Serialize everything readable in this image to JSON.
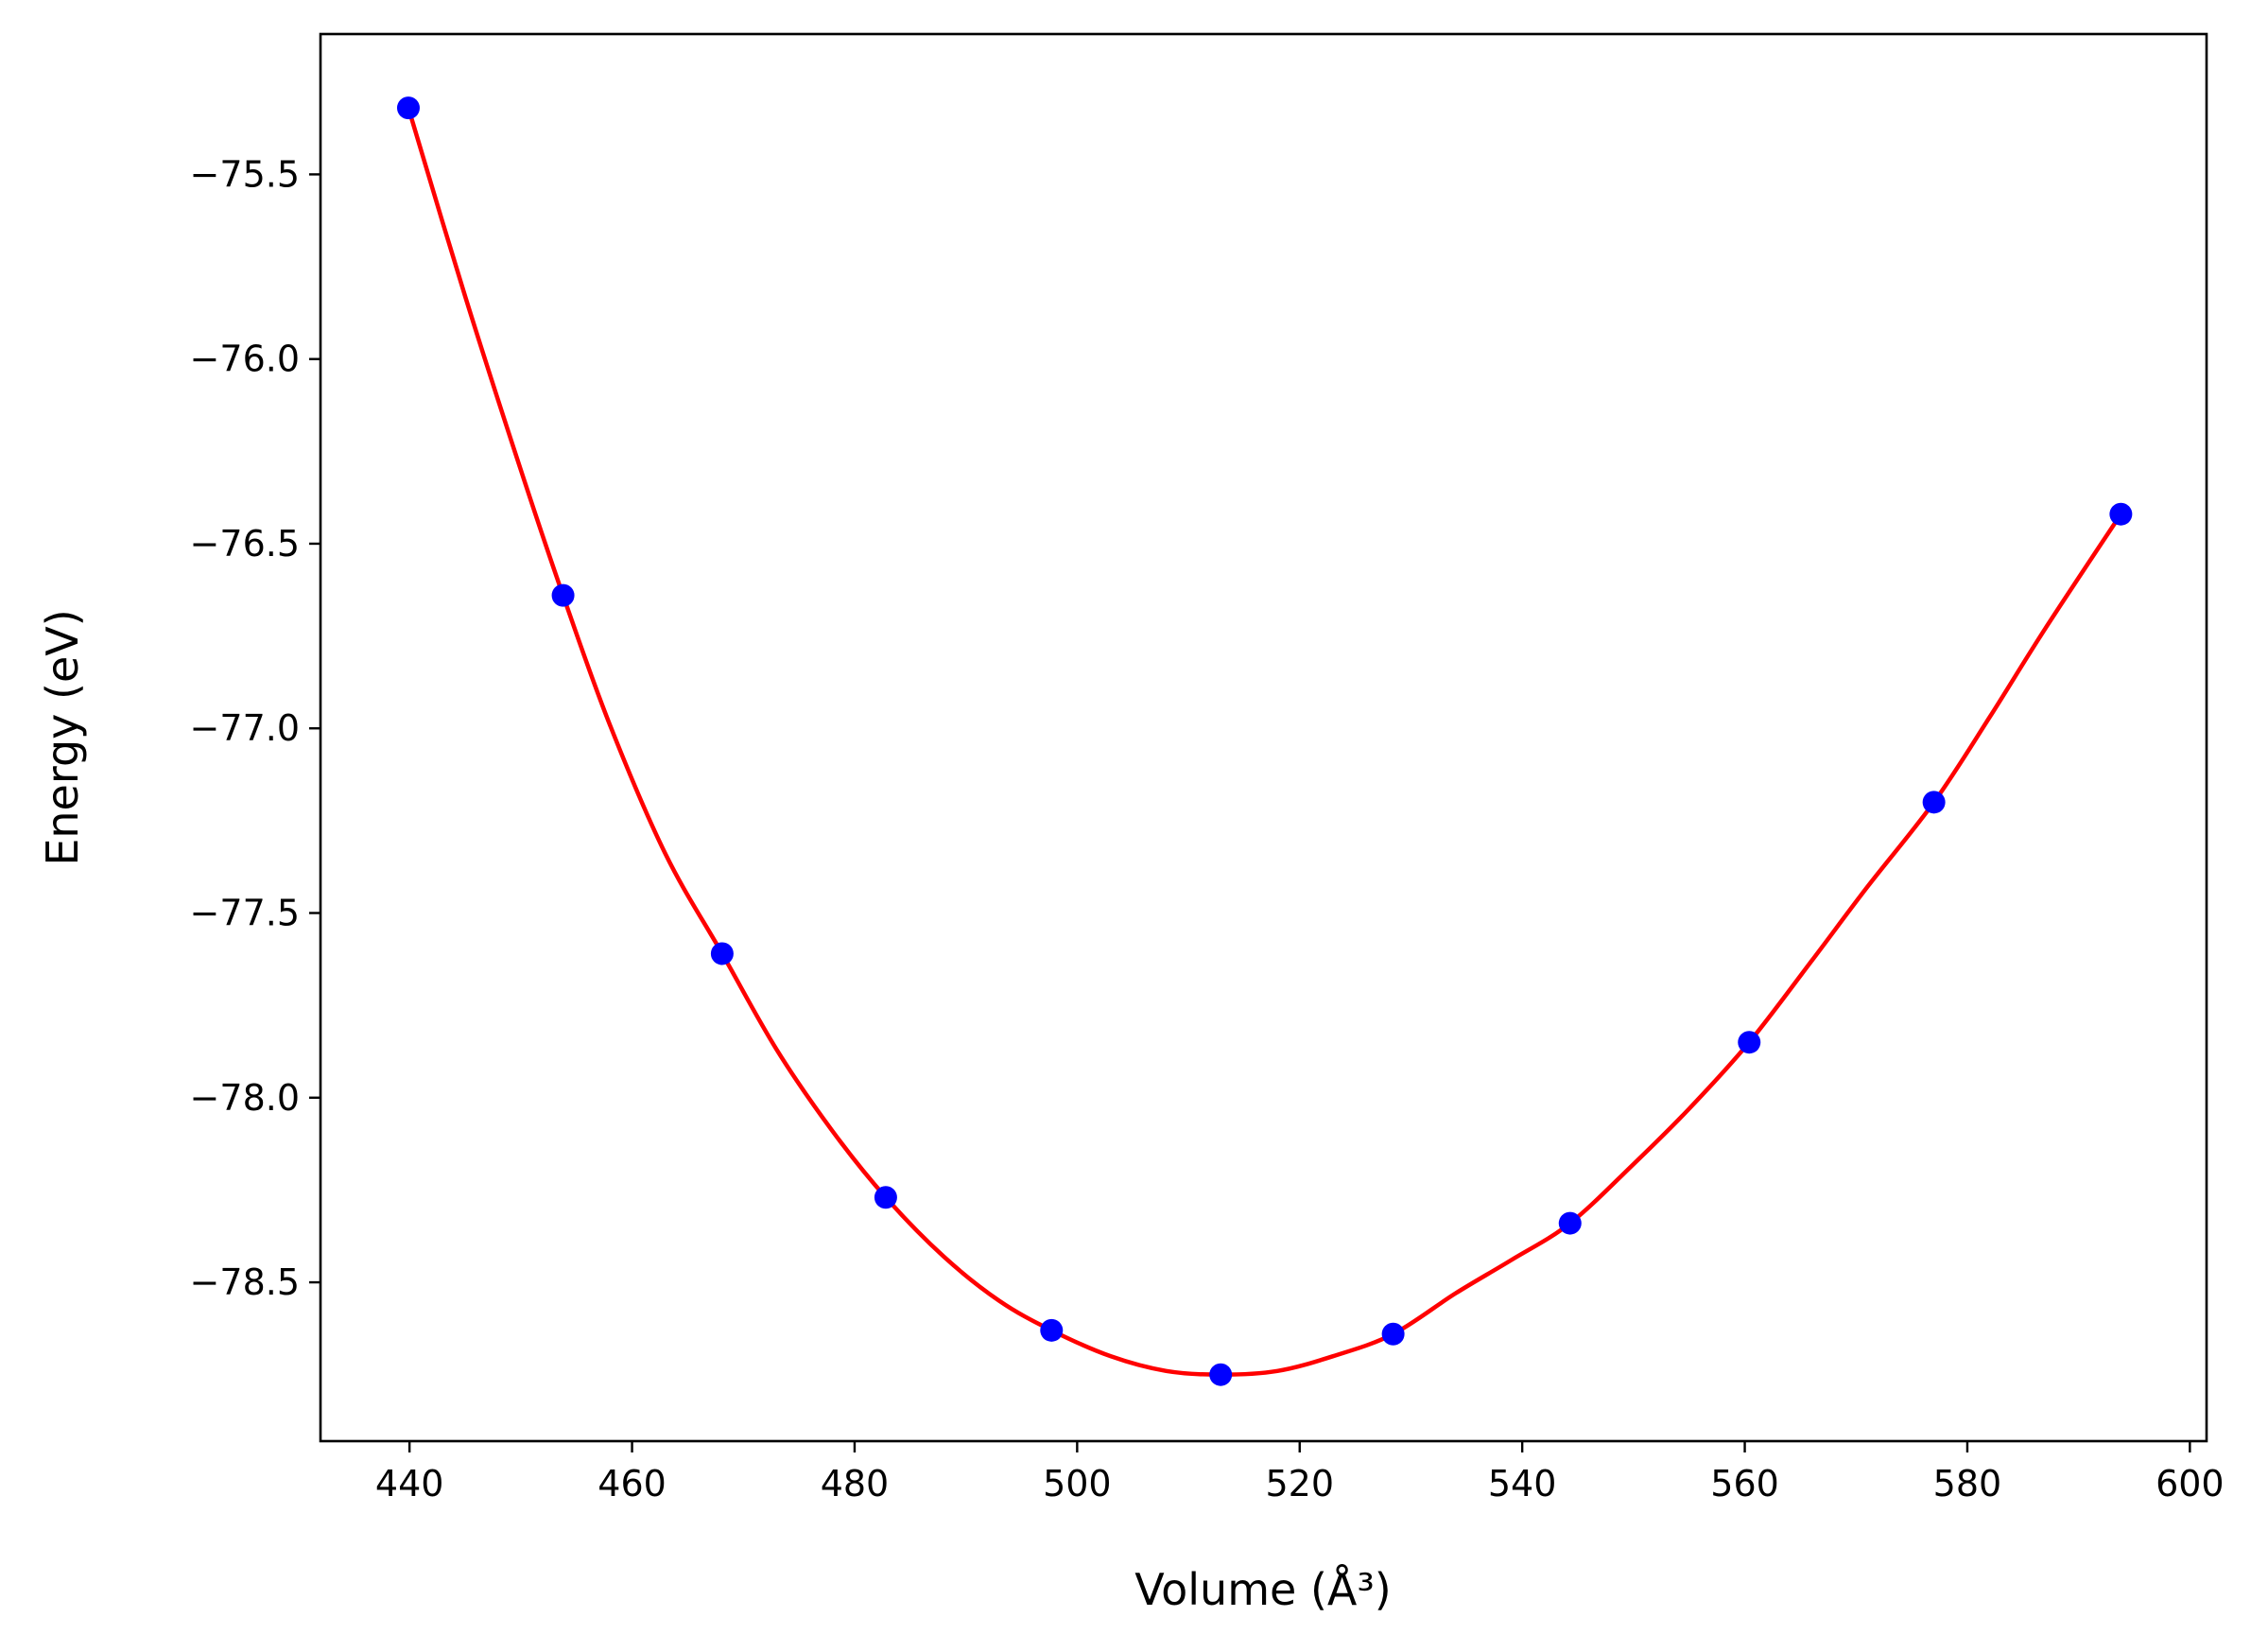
{
  "chart_data": {
    "type": "line",
    "xlabel": "Volume (Å³)",
    "ylabel": "Energy (eV)",
    "xlim": [
      432,
      601.5
    ],
    "ylim": [
      -78.93,
      -75.12
    ],
    "xticks": [
      440,
      460,
      480,
      500,
      520,
      540,
      560,
      580,
      600
    ],
    "yticks": [
      -75.5,
      -76.0,
      -76.5,
      -77.0,
      -77.5,
      -78.0,
      -78.5
    ],
    "xtick_labels": [
      "440",
      "460",
      "480",
      "500",
      "520",
      "540",
      "560",
      "580",
      "600"
    ],
    "ytick_labels": [
      "−75.5",
      "−76.0",
      "−76.5",
      "−77.0",
      "−77.5",
      "−78.0",
      "−78.5"
    ],
    "grid": false,
    "series": [
      {
        "style": "markers",
        "color": "#0000ff",
        "x": [
          439.9,
          453.8,
          468.1,
          482.8,
          497.7,
          512.9,
          528.4,
          544.3,
          560.4,
          577.0,
          593.8
        ],
        "y": [
          -75.32,
          -76.64,
          -77.61,
          -78.27,
          -78.63,
          -78.75,
          -78.64,
          -78.34,
          -77.85,
          -77.2,
          -76.42
        ]
      },
      {
        "style": "line",
        "color": "#ff0000",
        "x": [
          439.9,
          445.0,
          450.0,
          453.8,
          458.0,
          463.0,
          468.1,
          473.0,
          478.0,
          482.8,
          488.0,
          493.0,
          497.7,
          503.0,
          508.0,
          512.9,
          518.0,
          523.0,
          528.4,
          534.0,
          539.0,
          544.3,
          550.0,
          555.0,
          560.4,
          566.0,
          571.0,
          577.0,
          582.0,
          587.0,
          593.8
        ],
        "y": [
          -75.32,
          -75.83,
          -76.3,
          -76.64,
          -76.99,
          -77.34,
          -77.61,
          -77.87,
          -78.09,
          -78.27,
          -78.43,
          -78.55,
          -78.63,
          -78.7,
          -78.74,
          -78.75,
          -78.74,
          -78.7,
          -78.64,
          -78.53,
          -78.44,
          -78.34,
          -78.18,
          -78.03,
          -77.85,
          -77.63,
          -77.43,
          -77.2,
          -76.97,
          -76.73,
          -76.42
        ]
      }
    ]
  }
}
